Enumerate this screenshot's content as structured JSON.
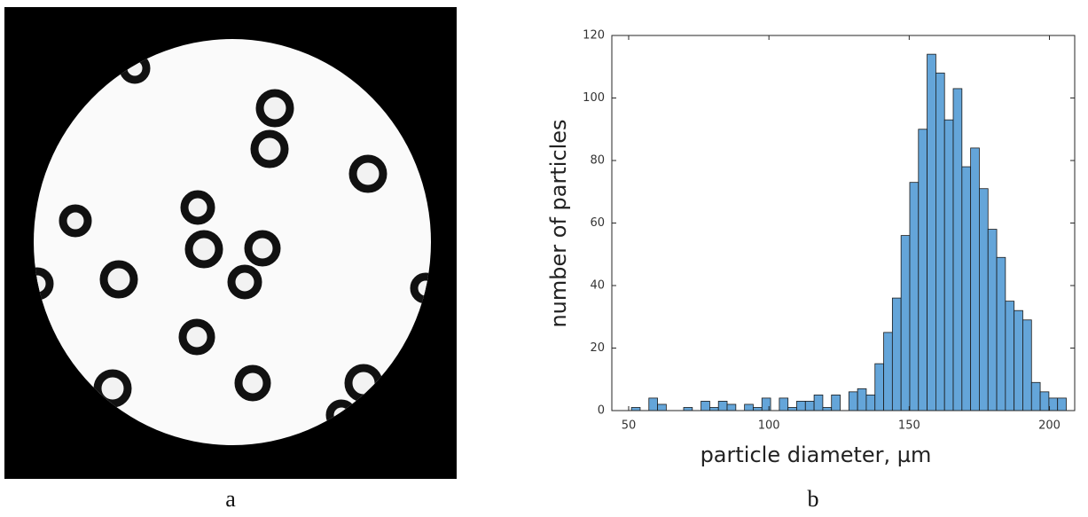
{
  "chart_data": {
    "type": "histogram",
    "x_label": "particle diameter, µm",
    "y_label": "number of particles",
    "bins": [
      51,
      54.1,
      57.2,
      60.3,
      63.4,
      66.5,
      69.6,
      72.7,
      75.8,
      78.9,
      82,
      85.1,
      88.2,
      91.3,
      94.4,
      97.5,
      100.6,
      103.7,
      106.8,
      109.9,
      113,
      116.1,
      119.2,
      122.3,
      125.4,
      128.5,
      131.6,
      134.7,
      137.8,
      140.9,
      144,
      147.1,
      150.2,
      153.3,
      156.4,
      159.5,
      162.6,
      165.7,
      168.8,
      171.9,
      175,
      178.1,
      181.2,
      184.3,
      187.4,
      190.5,
      193.6,
      196.7,
      199.8,
      202.9,
      206
    ],
    "values": [
      1,
      0,
      4,
      2,
      0,
      0,
      1,
      0,
      3,
      1,
      3,
      2,
      0,
      2,
      1,
      4,
      0,
      4,
      1,
      3,
      3,
      5,
      1,
      5,
      0,
      6,
      7,
      5,
      15,
      25,
      36,
      56,
      73,
      90,
      114,
      108,
      93,
      103,
      78,
      84,
      71,
      58,
      49,
      35,
      32,
      29,
      9,
      6,
      4,
      4
    ],
    "color": "#64a5d9",
    "xlim": [
      44,
      209
    ],
    "xticks": [
      50,
      100,
      150,
      200
    ],
    "ylim": [
      0,
      120
    ],
    "yticks": [
      0,
      20,
      40,
      60,
      80,
      100,
      120
    ]
  },
  "panel_labels": [
    "a",
    "b"
  ]
}
